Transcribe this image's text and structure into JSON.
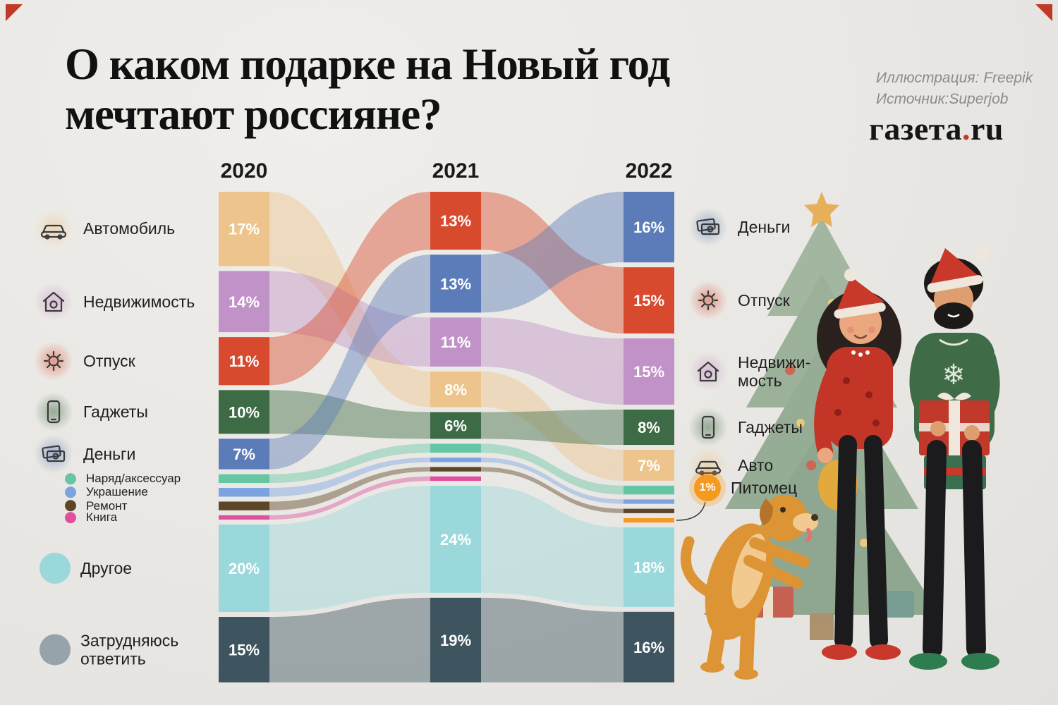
{
  "header": {
    "title_line1": "О каком подарке на Новый год",
    "title_line2": "мечтают россияне?",
    "credit_illustration": "Иллюстрация: Freepik",
    "credit_source": "Источник:Superjob",
    "logo_text": "газета",
    "logo_dot": ".",
    "logo_suffix": "ru"
  },
  "legend_left": [
    {
      "cat": "Автомобиль",
      "label": "Автомобиль",
      "icon": "car-icon",
      "color": "#edc48b"
    },
    {
      "cat": "Недвижимость",
      "label": "Недвижимость",
      "icon": "house-icon",
      "color": "#c192c7"
    },
    {
      "cat": "Отпуск",
      "label": "Отпуск",
      "icon": "sun-icon",
      "color": "#d84a2e"
    },
    {
      "cat": "Гаджеты",
      "label": "Гаджеты",
      "icon": "phone-icon",
      "color": "#3d6b45"
    },
    {
      "cat": "Деньги",
      "label": "Деньги",
      "icon": "money-icon",
      "color": "#5b7cb8"
    },
    {
      "cat": "Наряд/аксессуар",
      "label": "Наряд/аксессуар",
      "icon": "dot",
      "color": "#66c6a4",
      "small": true
    },
    {
      "cat": "Украшение",
      "label": "Украшение",
      "icon": "dot",
      "color": "#7ba3e3",
      "small": true
    },
    {
      "cat": "Ремонт",
      "label": "Ремонт",
      "icon": "dot",
      "color": "#5d4527",
      "small": true
    },
    {
      "cat": "Книга",
      "label": "Книга",
      "icon": "dot",
      "color": "#e0509e",
      "small": true
    },
    {
      "cat": "Другое",
      "label": "Другое",
      "icon": "dot-large",
      "color": "#9ad8dc"
    },
    {
      "cat": "Затрудняюсь ответить",
      "label": "Затрудняюсь\nответить",
      "icon": "dot-large",
      "color": "#96a3aa"
    }
  ],
  "legend_right": [
    {
      "cat": "Деньги",
      "label": "Деньги",
      "icon": "money-icon",
      "color": "#5b7cb8"
    },
    {
      "cat": "Отпуск",
      "label": "Отпуск",
      "icon": "sun-icon",
      "color": "#d84a2e"
    },
    {
      "cat": "Недвижимость",
      "label": "Недвижи-\nмость",
      "icon": "house-icon",
      "color": "#c192c7"
    },
    {
      "cat": "Гаджеты",
      "label": "Гаджеты",
      "icon": "phone-icon",
      "color": "#3d6b45"
    },
    {
      "cat": "Автомобиль",
      "label": "Авто",
      "icon": "car-icon",
      "color": "#edc48b"
    },
    {
      "cat": "Питомец",
      "label": "Питомец",
      "icon": "pet-badge-icon",
      "color": "#f59a1f",
      "badge": "1%"
    }
  ],
  "chart_data": {
    "type": "sankey",
    "title": "О каком подарке на Новый год мечтают россияне?",
    "years": [
      "2020",
      "2021",
      "2022"
    ],
    "unit": "%",
    "label_threshold": 6,
    "categories": [
      {
        "name": "Автомобиль",
        "color": "#edc48b",
        "values": [
          17,
          8,
          7
        ]
      },
      {
        "name": "Недвижимость",
        "color": "#c192c7",
        "values": [
          14,
          11,
          15
        ]
      },
      {
        "name": "Отпуск",
        "color": "#d84a2e",
        "values": [
          11,
          13,
          15
        ]
      },
      {
        "name": "Гаджеты",
        "color": "#3d6b45",
        "values": [
          10,
          6,
          8
        ]
      },
      {
        "name": "Деньги",
        "color": "#5b7cb8",
        "values": [
          7,
          13,
          16
        ]
      },
      {
        "name": "Наряд/аксессуар",
        "color": "#66c6a4",
        "values": [
          2,
          2,
          2
        ]
      },
      {
        "name": "Украшение",
        "color": "#7ba3e3",
        "values": [
          2,
          1,
          1
        ]
      },
      {
        "name": "Ремонт",
        "color": "#5d4527",
        "values": [
          2,
          1,
          1
        ]
      },
      {
        "name": "Книга",
        "color": "#e0509e",
        "values": [
          1,
          1,
          0
        ]
      },
      {
        "name": "Питомец",
        "color": "#f59a1f",
        "values": [
          0,
          0,
          1
        ]
      },
      {
        "name": "Другое",
        "color": "#9ad8dc",
        "values": [
          20,
          24,
          18
        ]
      },
      {
        "name": "Затрудняюсь ответить",
        "color": "#3e5560",
        "values": [
          15,
          19,
          16
        ]
      }
    ],
    "orders": [
      [
        "Автомобиль",
        "Недвижимость",
        "Отпуск",
        "Гаджеты",
        "Деньги",
        "Наряд/аксессуар",
        "Украшение",
        "Ремонт",
        "Книга",
        "Другое",
        "Затрудняюсь ответить"
      ],
      [
        "Отпуск",
        "Деньги",
        "Недвижимость",
        "Автомобиль",
        "Гаджеты",
        "Наряд/аксессуар",
        "Украшение",
        "Ремонт",
        "Книга",
        "Другое",
        "Затрудняюсь ответить"
      ],
      [
        "Деньги",
        "Отпуск",
        "Недвижимость",
        "Гаджеты",
        "Автомобиль",
        "Наряд/аксессуар",
        "Украшение",
        "Ремонт",
        "Питомец",
        "Другое",
        "Затрудняюсь ответить"
      ]
    ]
  }
}
